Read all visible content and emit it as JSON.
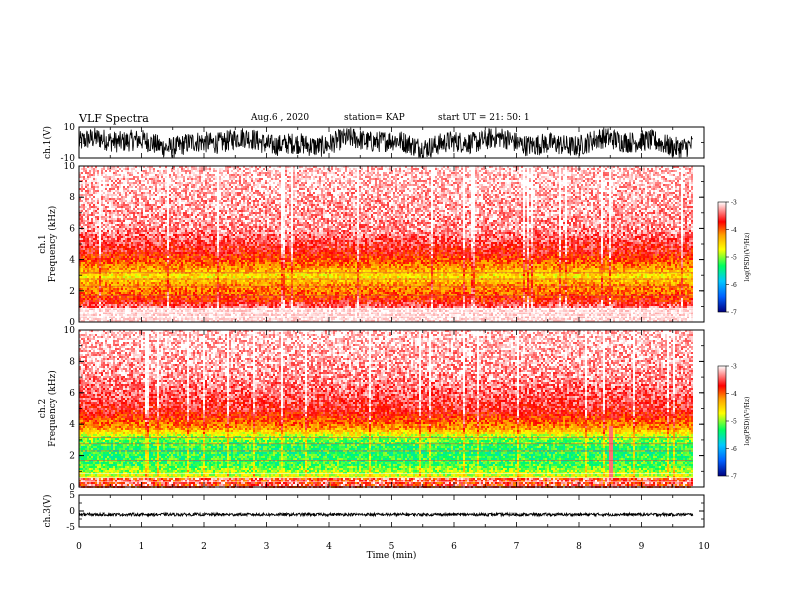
{
  "header": {
    "title": "VLF Spectra",
    "date": "Aug.6 , 2020",
    "station": "station= KAP",
    "start": "start UT = 21: 50: 1"
  },
  "chart_data": [
    {
      "type": "line",
      "panel": "ch1-waveform",
      "ylabel": "ch.1(V)",
      "ylim": [
        -10,
        10
      ],
      "yticks": [
        "10",
        "-10"
      ],
      "xlim": [
        0,
        9.82
      ],
      "series": [
        {
          "description_values": "dense noise, mostly between -8 and 8 V"
        }
      ]
    },
    {
      "type": "heatmap",
      "panel": "ch1-spectrogram",
      "ylabel": "ch.1\nFrequency (kHz)",
      "ylim": [
        0,
        10
      ],
      "yticks": [
        "0",
        "2",
        "4",
        "6",
        "8",
        "10"
      ],
      "xlim": [
        0,
        9.82
      ],
      "profile": [
        {
          "f": 0.0,
          "log_psd": -3.2
        },
        {
          "f": 1.0,
          "log_psd": -3.4
        },
        {
          "f": 1.8,
          "log_psd": -4.0
        },
        {
          "f": 2.5,
          "log_psd": -4.2
        },
        {
          "f": 3.0,
          "log_psd": -4.6
        },
        {
          "f": 3.5,
          "log_psd": -4.2
        },
        {
          "f": 4.5,
          "log_psd": -3.7
        },
        {
          "f": 6.0,
          "log_psd": -3.3
        },
        {
          "f": 10.0,
          "log_psd": -3.1
        }
      ]
    },
    {
      "type": "heatmap",
      "panel": "ch2-spectrogram",
      "ylabel": "ch.2\nFrequency (kHz)",
      "ylim": [
        0,
        10
      ],
      "yticks": [
        "0",
        "2",
        "4",
        "6",
        "8",
        "10"
      ],
      "xlim": [
        0,
        9.82
      ],
      "profile": [
        {
          "f": 0.0,
          "log_psd": -4.0
        },
        {
          "f": 0.8,
          "log_psd": -4.8
        },
        {
          "f": 1.5,
          "log_psd": -5.2
        },
        {
          "f": 2.5,
          "log_psd": -5.3
        },
        {
          "f": 3.2,
          "log_psd": -5.0
        },
        {
          "f": 3.8,
          "log_psd": -4.2
        },
        {
          "f": 5.0,
          "log_psd": -3.6
        },
        {
          "f": 7.0,
          "log_psd": -3.3
        },
        {
          "f": 10.0,
          "log_psd": -3.1
        }
      ]
    },
    {
      "type": "line",
      "panel": "ch3-waveform",
      "ylabel": "ch.3(V)",
      "ylim": [
        -5,
        5
      ],
      "yticks": [
        "5",
        "0",
        "-5"
      ],
      "xlim": [
        0,
        9.82
      ],
      "series": [
        {
          "description_values": "constant offset near -1 V with small noise"
        }
      ]
    }
  ],
  "xaxis": {
    "label": "Time (min)",
    "ticks": [
      "0",
      "1",
      "2",
      "3",
      "4",
      "5",
      "6",
      "7",
      "8",
      "9",
      "10"
    ],
    "range": [
      0,
      10
    ]
  },
  "colorbar": {
    "label": "log(PSD)(V²/Hz)",
    "ticks": [
      "-3",
      "-4",
      "-5",
      "-6",
      "-7"
    ],
    "range": [
      -7,
      -3
    ],
    "colors": [
      "#000080",
      "#0060ff",
      "#00c8ff",
      "#00ff60",
      "#ffff00",
      "#ffa000",
      "#ff0000",
      "#ffffff"
    ]
  }
}
